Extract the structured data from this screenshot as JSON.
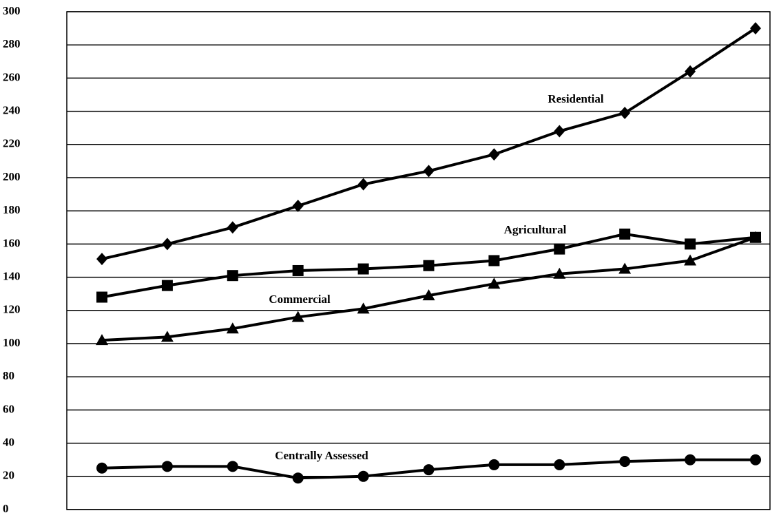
{
  "chart_data": {
    "type": "line",
    "categories": [
      null,
      null,
      null,
      null,
      null,
      null,
      null,
      null,
      null,
      null,
      null
    ],
    "series": [
      {
        "name": "Residential",
        "color": "#000000",
        "marker": "diamond",
        "values": [
          151,
          160,
          170,
          183,
          196,
          204,
          214,
          228,
          239,
          264,
          290
        ]
      },
      {
        "name": "Agricultural",
        "color": "#000000",
        "marker": "square",
        "values": [
          128,
          135,
          141,
          144,
          145,
          147,
          150,
          157,
          166,
          160,
          164
        ]
      },
      {
        "name": "Commercial",
        "color": "#000000",
        "marker": "triangle",
        "values": [
          102,
          104,
          109,
          116,
          121,
          129,
          136,
          142,
          145,
          150,
          164
        ]
      },
      {
        "name": "Centrally Assessed",
        "color": "#000000",
        "marker": "circle",
        "values": [
          25,
          26,
          26,
          19,
          20,
          24,
          27,
          27,
          29,
          30,
          30
        ]
      }
    ],
    "ylim": [
      0,
      300
    ],
    "yticks": [
      0,
      20,
      40,
      60,
      80,
      100,
      120,
      140,
      160,
      180,
      200,
      220,
      240,
      260,
      280,
      300
    ],
    "grid": true
  }
}
